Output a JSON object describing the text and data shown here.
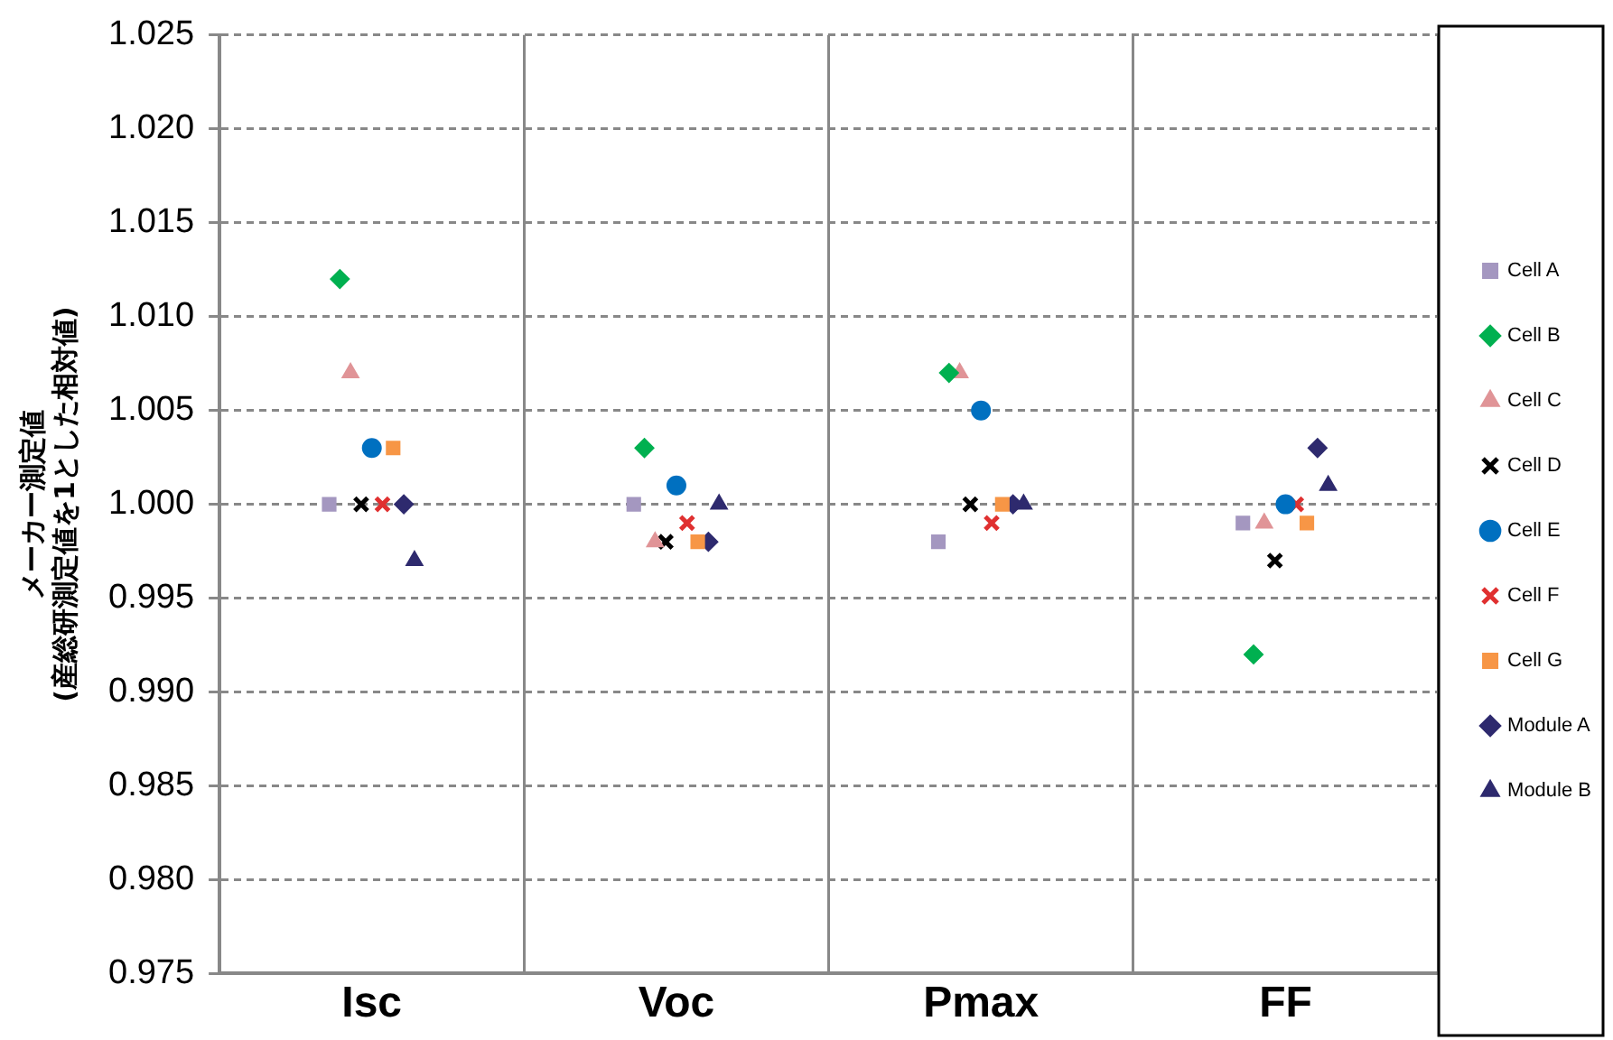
{
  "chart_data": {
    "type": "scatter",
    "ylabel": "メーカー測定値\n(産総研測定値を1とした相対値)",
    "categories": [
      "Isc",
      "Voc",
      "Pmax",
      "FF"
    ],
    "ylim": [
      0.975,
      1.025
    ],
    "yticks": [
      {
        "value": 0.975,
        "label": "0.975"
      },
      {
        "value": 0.98,
        "label": "0.980"
      },
      {
        "value": 0.985,
        "label": "0.985"
      },
      {
        "value": 0.99,
        "label": "0.990"
      },
      {
        "value": 0.995,
        "label": "0.995"
      },
      {
        "value": 1,
        "label": "1.000"
      },
      {
        "value": 1.005,
        "label": "1.005"
      },
      {
        "value": 1.01,
        "label": "1.010"
      },
      {
        "value": 1.015,
        "label": "1.015"
      },
      {
        "value": 1.02,
        "label": "1.020"
      },
      {
        "value": 1.025,
        "label": "1.025"
      }
    ],
    "grid": true,
    "legend": "right",
    "series": [
      {
        "name": "Cell A",
        "color": "#a497c0",
        "marker": "square",
        "values": [
          1.0,
          1.0,
          0.998,
          0.999
        ]
      },
      {
        "name": "Cell B",
        "color": "#00b050",
        "marker": "diamond",
        "values": [
          1.012,
          1.003,
          1.007,
          0.992
        ]
      },
      {
        "name": "Cell C",
        "color": "#e09497",
        "marker": "triangle",
        "values": [
          1.007,
          0.998,
          1.007,
          0.999
        ]
      },
      {
        "name": "Cell D",
        "color": "#000000",
        "marker": "cross",
        "values": [
          1.0,
          0.998,
          1.0,
          0.997
        ]
      },
      {
        "name": "Cell E",
        "color": "#0070c0",
        "marker": "circle",
        "values": [
          1.003,
          1.001,
          1.005,
          1.0
        ]
      },
      {
        "name": "Cell F",
        "color": "#e03030",
        "marker": "cross",
        "values": [
          1.0,
          0.999,
          0.999,
          1.0
        ]
      },
      {
        "name": "Cell G",
        "color": "#f79646",
        "marker": "square",
        "values": [
          1.003,
          0.998,
          1.0,
          0.999
        ]
      },
      {
        "name": "Module A",
        "color": "#2e2a6e",
        "marker": "diamond",
        "values": [
          1.0,
          0.998,
          1.0,
          1.003
        ]
      },
      {
        "name": "Module B",
        "color": "#2e2a6e",
        "marker": "triangle",
        "values": [
          0.997,
          1.0,
          1.0,
          1.001
        ]
      }
    ]
  }
}
